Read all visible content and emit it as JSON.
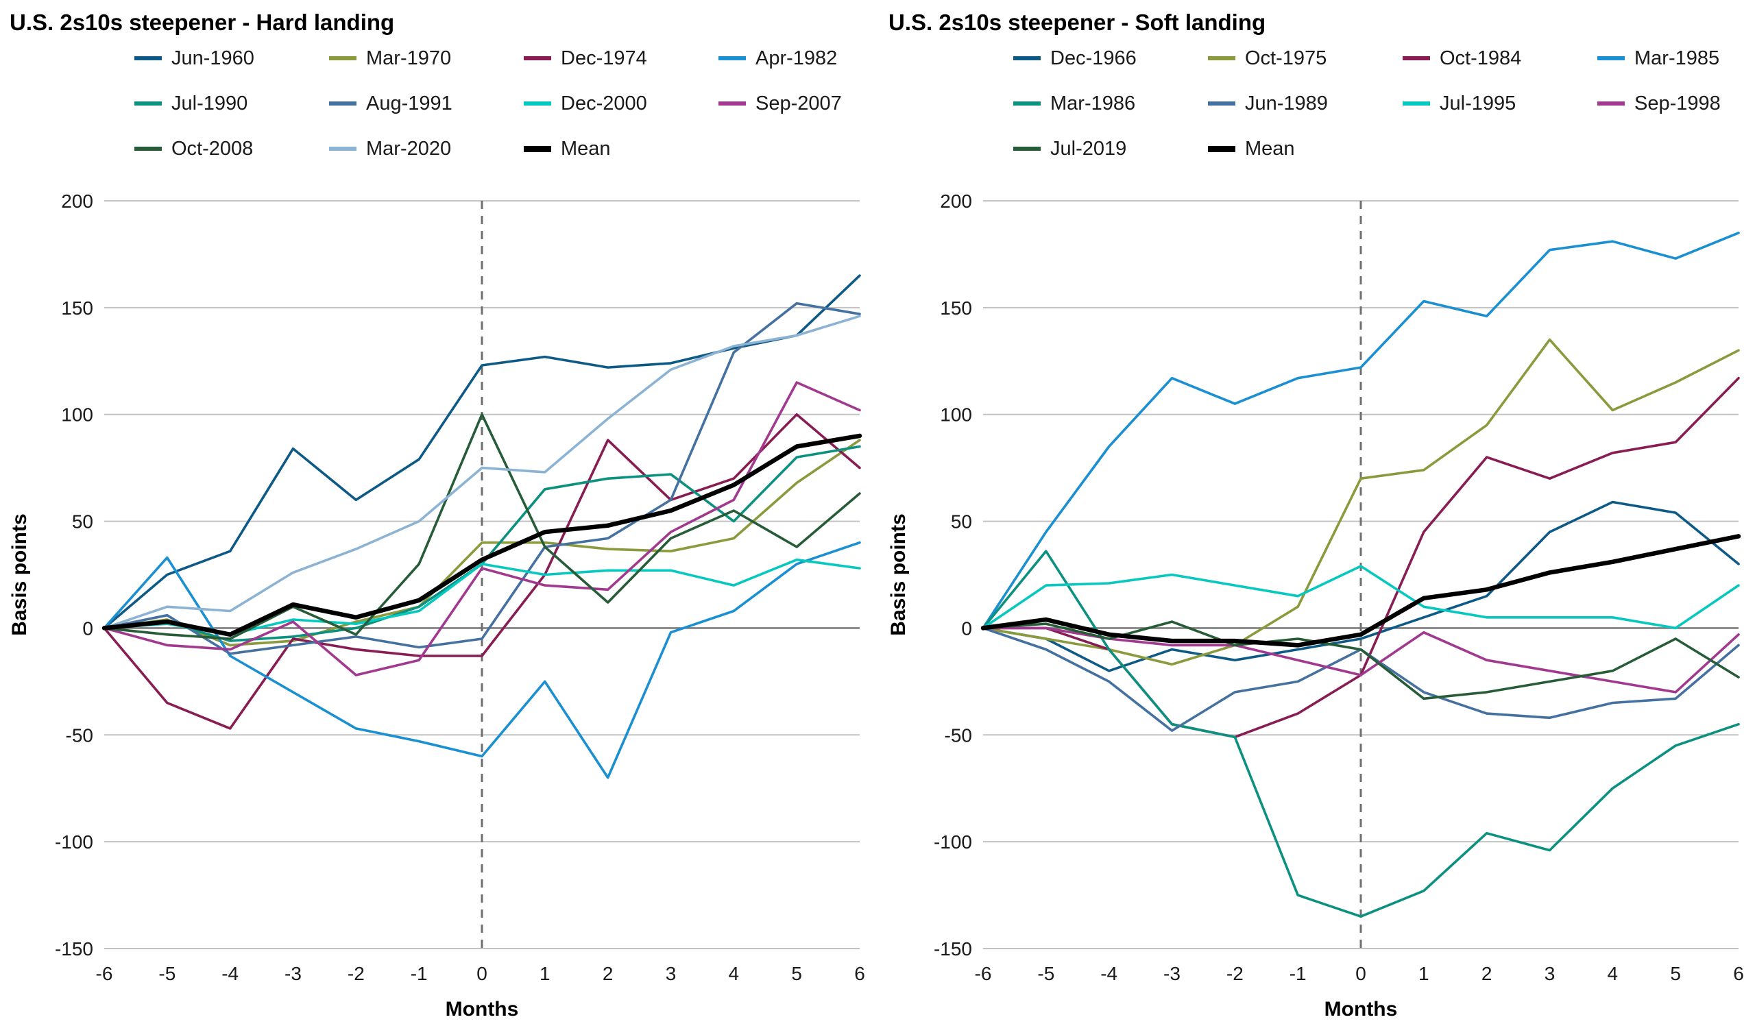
{
  "page": {
    "background": "#ffffff"
  },
  "chart_data": [
    {
      "type": "line",
      "title": "U.S. 2s10s steepener - Hard landing",
      "xlabel": "Months",
      "ylabel": "Basis points",
      "x": [
        -6,
        -5,
        -4,
        -3,
        -2,
        -1,
        0,
        1,
        2,
        3,
        4,
        5,
        6
      ],
      "ylim": [
        -150,
        200
      ],
      "ytick_step": 50,
      "event_line_x": 0,
      "grid": true,
      "legend_position": "top",
      "series": [
        {
          "name": "Jun-1960",
          "color": "#0e5a86",
          "values": [
            0,
            25,
            36,
            84,
            60,
            79,
            123,
            127,
            122,
            124,
            131,
            137,
            165
          ]
        },
        {
          "name": "Mar-1970",
          "color": "#8a9a3d",
          "values": [
            0,
            4,
            -8,
            -6,
            3,
            10,
            40,
            40,
            37,
            36,
            42,
            68,
            88
          ]
        },
        {
          "name": "Dec-1974",
          "color": "#871d53",
          "values": [
            0,
            -35,
            -47,
            -5,
            -10,
            -13,
            -13,
            25,
            88,
            60,
            70,
            100,
            75
          ]
        },
        {
          "name": "Apr-1982",
          "color": "#1a8fd1",
          "values": [
            0,
            33,
            -13,
            -30,
            -47,
            -53,
            -60,
            -25,
            -70,
            -2,
            8,
            30,
            40
          ]
        },
        {
          "name": "Jul-1990",
          "color": "#0c9180",
          "values": [
            0,
            3,
            -6,
            -4,
            0,
            10,
            30,
            65,
            70,
            72,
            50,
            80,
            85
          ]
        },
        {
          "name": "Aug-1991",
          "color": "#44719f",
          "values": [
            0,
            6,
            -12,
            -8,
            -4,
            -9,
            -5,
            38,
            42,
            60,
            129,
            152,
            147
          ]
        },
        {
          "name": "Dec-2000",
          "color": "#06c8bf",
          "values": [
            0,
            2,
            -3,
            4,
            2,
            8,
            30,
            25,
            27,
            27,
            20,
            32,
            28
          ]
        },
        {
          "name": "Sep-2007",
          "color": "#a13a8f",
          "values": [
            0,
            -8,
            -10,
            3,
            -22,
            -15,
            28,
            20,
            18,
            45,
            60,
            115,
            102
          ]
        },
        {
          "name": "Oct-2008",
          "color": "#275c38",
          "values": [
            0,
            -3,
            -5,
            10,
            -3,
            30,
            100,
            38,
            12,
            42,
            55,
            38,
            63
          ]
        },
        {
          "name": "Mar-2020",
          "color": "#8cb3d3",
          "values": [
            0,
            10,
            8,
            26,
            37,
            50,
            75,
            73,
            98,
            121,
            132,
            137,
            146
          ]
        },
        {
          "name": "Mean",
          "color": "#000000",
          "emphasis": true,
          "values": [
            0,
            3,
            -3,
            11,
            5,
            13,
            32,
            45,
            48,
            55,
            67,
            85,
            90
          ]
        }
      ]
    },
    {
      "type": "line",
      "title": "U.S. 2s10s steepener - Soft landing",
      "xlabel": "Months",
      "ylabel": "Basis points",
      "x": [
        -6,
        -5,
        -4,
        -3,
        -2,
        -1,
        0,
        1,
        2,
        3,
        4,
        5,
        6
      ],
      "ylim": [
        -150,
        200
      ],
      "ytick_step": 50,
      "event_line_x": 0,
      "grid": true,
      "legend_position": "top",
      "series": [
        {
          "name": "Dec-1966",
          "color": "#0e5a86",
          "values": [
            0,
            -5,
            -20,
            -10,
            -15,
            -10,
            -5,
            5,
            15,
            45,
            59,
            54,
            30
          ]
        },
        {
          "name": "Oct-1975",
          "color": "#8a9a3d",
          "values": [
            0,
            -5,
            -10,
            -17,
            -8,
            10,
            70,
            74,
            95,
            135,
            102,
            115,
            130
          ]
        },
        {
          "name": "Oct-1984",
          "color": "#871d53",
          "values": [
            0,
            0,
            -10,
            -45,
            -51,
            -40,
            -22,
            45,
            80,
            70,
            82,
            87,
            117
          ]
        },
        {
          "name": "Mar-1985",
          "color": "#1a8fd1",
          "values": [
            0,
            45,
            85,
            117,
            105,
            117,
            122,
            153,
            146,
            177,
            181,
            173,
            185
          ]
        },
        {
          "name": "Mar-1986",
          "color": "#0c9180",
          "values": [
            0,
            36,
            -10,
            -45,
            -51,
            -125,
            -135,
            -123,
            -96,
            -104,
            -75,
            -55,
            -45
          ]
        },
        {
          "name": "Jun-1989",
          "color": "#44719f",
          "values": [
            0,
            -10,
            -25,
            -48,
            -30,
            -25,
            -10,
            -30,
            -40,
            -42,
            -35,
            -33,
            -8
          ]
        },
        {
          "name": "Jul-1995",
          "color": "#06c8bf",
          "values": [
            0,
            20,
            21,
            25,
            20,
            15,
            29,
            10,
            5,
            5,
            5,
            0,
            20
          ]
        },
        {
          "name": "Sep-1998",
          "color": "#a13a8f",
          "values": [
            0,
            0,
            -5,
            -8,
            -8,
            -15,
            -22,
            -2,
            -15,
            -20,
            -25,
            -30,
            -3
          ]
        },
        {
          "name": "Jul-2019",
          "color": "#275c38",
          "values": [
            0,
            2,
            -5,
            3,
            -8,
            -5,
            -10,
            -33,
            -30,
            -25,
            -20,
            -5,
            -23
          ]
        },
        {
          "name": "Mean",
          "color": "#000000",
          "emphasis": true,
          "values": [
            0,
            4,
            -3,
            -6,
            -6,
            -8,
            -3,
            14,
            18,
            26,
            31,
            37,
            43
          ]
        }
      ]
    }
  ]
}
